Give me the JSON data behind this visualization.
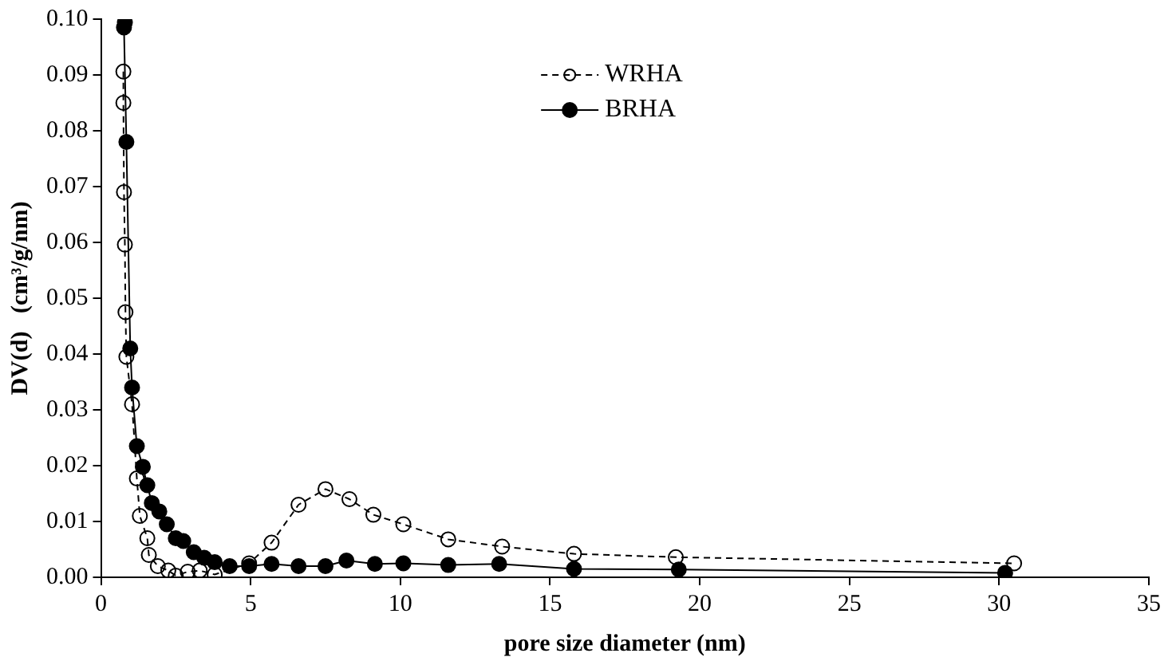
{
  "chart_data": {
    "type": "line",
    "xlabel": "pore size diameter (nm)",
    "ylabel": "DV(d)   (cm³/g/nm)",
    "xlim": [
      0,
      35
    ],
    "xticks": [
      0,
      5,
      10,
      15,
      20,
      25,
      30,
      35
    ],
    "ylim": [
      0,
      0.1
    ],
    "yticks": [
      {
        "value": 0,
        "label": "0.00"
      },
      {
        "value": 0.01,
        "label": "0.01"
      },
      {
        "value": 0.02,
        "label": "0.02"
      },
      {
        "value": 0.03,
        "label": "0.03"
      },
      {
        "value": 0.04,
        "label": "0.04"
      },
      {
        "value": 0.05,
        "label": "0.05"
      },
      {
        "value": 0.06,
        "label": "0.06"
      },
      {
        "value": 0.07,
        "label": "0.07"
      },
      {
        "value": 0.08,
        "label": "0.08"
      },
      {
        "value": 0.09,
        "label": "0.09"
      },
      {
        "value": 0.1,
        "label": "0.10"
      }
    ],
    "grid": false,
    "legend": "top",
    "marker": "circle",
    "series": [
      {
        "name": "WRHA",
        "color": "#000000",
        "line_style": "dashed",
        "x": [
          0.75,
          0.75,
          0.77,
          0.8,
          0.82,
          0.85,
          1.04,
          1.2,
          1.3,
          1.55,
          1.6,
          1.9,
          2.25,
          2.5,
          2.9,
          3.3,
          3.8,
          4.95,
          5.7,
          6.6,
          7.5,
          8.3,
          9.1,
          10.1,
          11.6,
          13.4,
          15.8,
          19.2,
          30.5
        ],
        "values": [
          0.0906,
          0.085,
          0.069,
          0.0596,
          0.0475,
          0.0395,
          0.031,
          0.0177,
          0.011,
          0.007,
          0.004,
          0.002,
          0.0012,
          0.0003,
          0.001,
          0.0012,
          0.0005,
          0.0025,
          0.0062,
          0.013,
          0.0158,
          0.014,
          0.0112,
          0.0095,
          0.0068,
          0.0055,
          0.0042,
          0.0036,
          0.0025
        ]
      },
      {
        "name": "BRHA",
        "color": "#000000",
        "line_style": "solid",
        "x": [
          0.8,
          0.77,
          0.85,
          0.98,
          1.04,
          1.2,
          1.4,
          1.55,
          1.7,
          1.95,
          2.2,
          2.5,
          2.75,
          3.1,
          3.45,
          3.8,
          4.3,
          4.95,
          5.7,
          6.6,
          7.5,
          8.2,
          9.15,
          10.1,
          11.6,
          13.3,
          15.8,
          19.3,
          30.2
        ],
        "values": [
          0.0994,
          0.0985,
          0.078,
          0.041,
          0.034,
          0.0235,
          0.0198,
          0.0165,
          0.0133,
          0.0118,
          0.0095,
          0.007,
          0.0065,
          0.0045,
          0.0035,
          0.0027,
          0.002,
          0.002,
          0.0024,
          0.002,
          0.002,
          0.003,
          0.0024,
          0.0025,
          0.0022,
          0.0024,
          0.0015,
          0.0014,
          0.0008
        ]
      }
    ]
  }
}
